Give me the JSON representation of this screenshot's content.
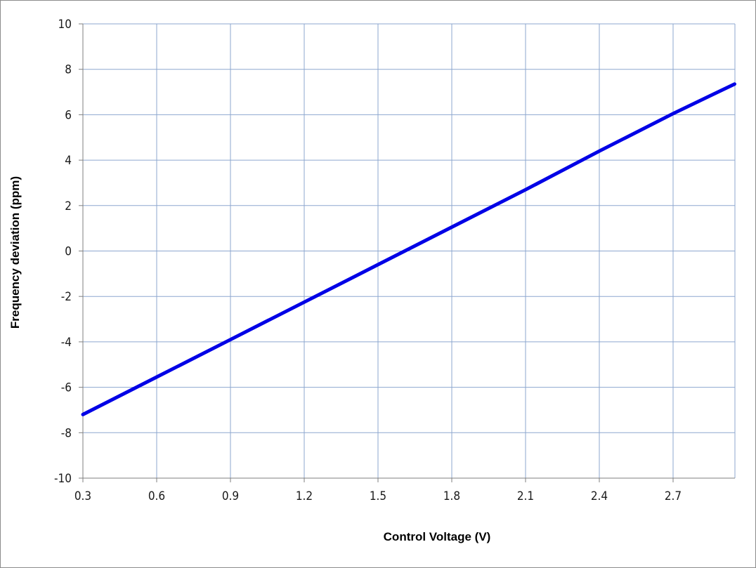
{
  "chart_data": {
    "type": "line",
    "title": "",
    "xlabel": "Control Voltage (V)",
    "ylabel": "Frequency deviation (ppm)",
    "xlim": [
      0.3,
      2.95
    ],
    "ylim": [
      -10,
      10
    ],
    "x_ticks": [
      "0.3",
      "0.6",
      "0.9",
      "1.2",
      "1.5",
      "1.8",
      "2.1",
      "2.4",
      "2.7"
    ],
    "y_ticks": [
      "10",
      "8",
      "6",
      "4",
      "2",
      "0",
      "-2",
      "-4",
      "-6",
      "-8",
      "-10"
    ],
    "grid": true,
    "legend": "none",
    "series": [
      {
        "color": "#0000e6",
        "x": [
          0.3,
          0.6,
          0.9,
          1.2,
          1.5,
          1.8,
          2.1,
          2.4,
          2.7,
          2.95
        ],
        "y": [
          -7.2,
          -5.55,
          -3.9,
          -2.25,
          -0.6,
          1.05,
          2.7,
          4.4,
          6.05,
          7.35
        ]
      }
    ]
  }
}
